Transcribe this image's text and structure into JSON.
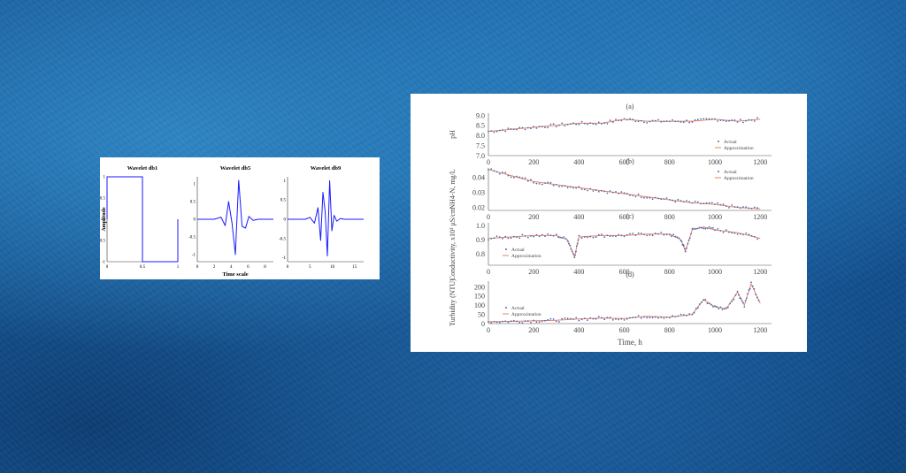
{
  "chart_data": [
    {
      "type": "line",
      "panel": "left",
      "ylabel": "Amplitude",
      "xlabel": "Time scale",
      "color": "#1a1aff",
      "subplots": [
        {
          "title": "Wavelet db1",
          "xticks": [
            "0",
            "0.5",
            "1"
          ],
          "yticks": [
            "1",
            "0.5",
            "0",
            "-0.5",
            "-1"
          ],
          "xlim": [
            0,
            1
          ],
          "ylim": [
            -1,
            1
          ],
          "x": [
            0,
            0,
            0.5,
            0.5,
            1,
            1
          ],
          "y": [
            0,
            1,
            1,
            -1,
            -1,
            0
          ]
        },
        {
          "title": "Wavelet db5",
          "xticks": [
            "0",
            "2",
            "4",
            "6",
            "8"
          ],
          "yticks": [
            "1",
            "0.5",
            "0",
            "-0.5",
            "-1"
          ],
          "xlim": [
            0,
            9
          ],
          "ylim": [
            -1.2,
            1.2
          ],
          "x": [
            0,
            2,
            2.8,
            3.3,
            3.7,
            4.1,
            4.5,
            4.9,
            5.3,
            5.7,
            6.1,
            6.6,
            7.2,
            9
          ],
          "y": [
            0,
            0,
            0.06,
            -0.18,
            0.5,
            -0.1,
            -1.0,
            1.1,
            -0.2,
            -0.25,
            0.08,
            -0.03,
            0,
            0
          ]
        },
        {
          "title": "Wavelet db9",
          "xticks": [
            "0",
            "5",
            "10",
            "15"
          ],
          "yticks": [
            "1",
            "0.5",
            "0",
            "-0.5",
            "-1"
          ],
          "xlim": [
            0,
            17
          ],
          "ylim": [
            -1.1,
            1.1
          ],
          "x": [
            0,
            4,
            5,
            6,
            6.8,
            7.4,
            7.9,
            8.4,
            8.9,
            9.4,
            9.9,
            10.4,
            11,
            11.8,
            12.6,
            17
          ],
          "y": [
            0,
            0,
            0.05,
            -0.1,
            0.3,
            -0.55,
            0.7,
            0.2,
            -0.95,
            1.0,
            -0.3,
            0.1,
            -0.05,
            0.02,
            0,
            0
          ]
        }
      ]
    },
    {
      "type": "scatter",
      "panel": "right",
      "xlabel": "Time, h",
      "xticks": [
        "0",
        "200",
        "400",
        "600",
        "800",
        "1000",
        "1200"
      ],
      "xlim": [
        0,
        1250
      ],
      "colors": {
        "actual": "#4a6fb5",
        "approx": "#e8806a"
      },
      "subplots": [
        {
          "tag": "(a)",
          "ylabel": "pH",
          "yticks": [
            "9.0",
            "8.5",
            "8.0",
            "7.5",
            "7.0"
          ],
          "ylim": [
            7.0,
            9.1
          ],
          "legend": [
            "Actual",
            "Approximation"
          ],
          "x": [
            0,
            100,
            200,
            300,
            400,
            500,
            600,
            700,
            800,
            900,
            1000,
            1100,
            1200
          ],
          "y": [
            8.2,
            8.3,
            8.4,
            8.5,
            8.6,
            8.6,
            8.8,
            8.7,
            8.7,
            8.7,
            8.8,
            8.7,
            8.8
          ]
        },
        {
          "tag": "(b)",
          "ylabel": "NH4-N, mg/L",
          "yticks": [
            "0.04",
            "0.03",
            "0.02"
          ],
          "ylim": [
            0.018,
            0.046
          ],
          "legend": [
            "Actual",
            "Approximation"
          ],
          "x": [
            0,
            100,
            200,
            300,
            400,
            500,
            600,
            700,
            800,
            900,
            1000,
            1100,
            1200
          ],
          "y": [
            0.045,
            0.041,
            0.037,
            0.035,
            0.033,
            0.031,
            0.029,
            0.027,
            0.025,
            0.023,
            0.022,
            0.02,
            0.019
          ]
        },
        {
          "tag": "(c)",
          "ylabel": "Conductivity, x10³ μS/cm",
          "yticks": [
            "1.0",
            "0.9",
            "0.8"
          ],
          "ylim": [
            0.72,
            1.02
          ],
          "legend": [
            "Actual",
            "Approximation"
          ],
          "x": [
            0,
            100,
            200,
            300,
            350,
            380,
            400,
            500,
            600,
            700,
            800,
            850,
            870,
            900,
            950,
            1000,
            1100,
            1200
          ],
          "y": [
            0.91,
            0.92,
            0.93,
            0.93,
            0.9,
            0.78,
            0.92,
            0.93,
            0.93,
            0.94,
            0.94,
            0.9,
            0.82,
            0.97,
            0.99,
            0.97,
            0.95,
            0.91
          ]
        },
        {
          "tag": "(d)",
          "ylabel": "Turbidity (NTU)",
          "yticks": [
            "200",
            "150",
            "100",
            "50",
            "0"
          ],
          "ylim": [
            0,
            230
          ],
          "legend": [
            "Actual",
            "Approximation"
          ],
          "x": [
            0,
            100,
            200,
            300,
            400,
            500,
            600,
            700,
            800,
            900,
            950,
            1000,
            1050,
            1100,
            1130,
            1160,
            1200
          ],
          "y": [
            10,
            12,
            15,
            18,
            25,
            30,
            28,
            40,
            35,
            50,
            130,
            90,
            80,
            170,
            100,
            215,
            110
          ]
        }
      ]
    }
  ]
}
